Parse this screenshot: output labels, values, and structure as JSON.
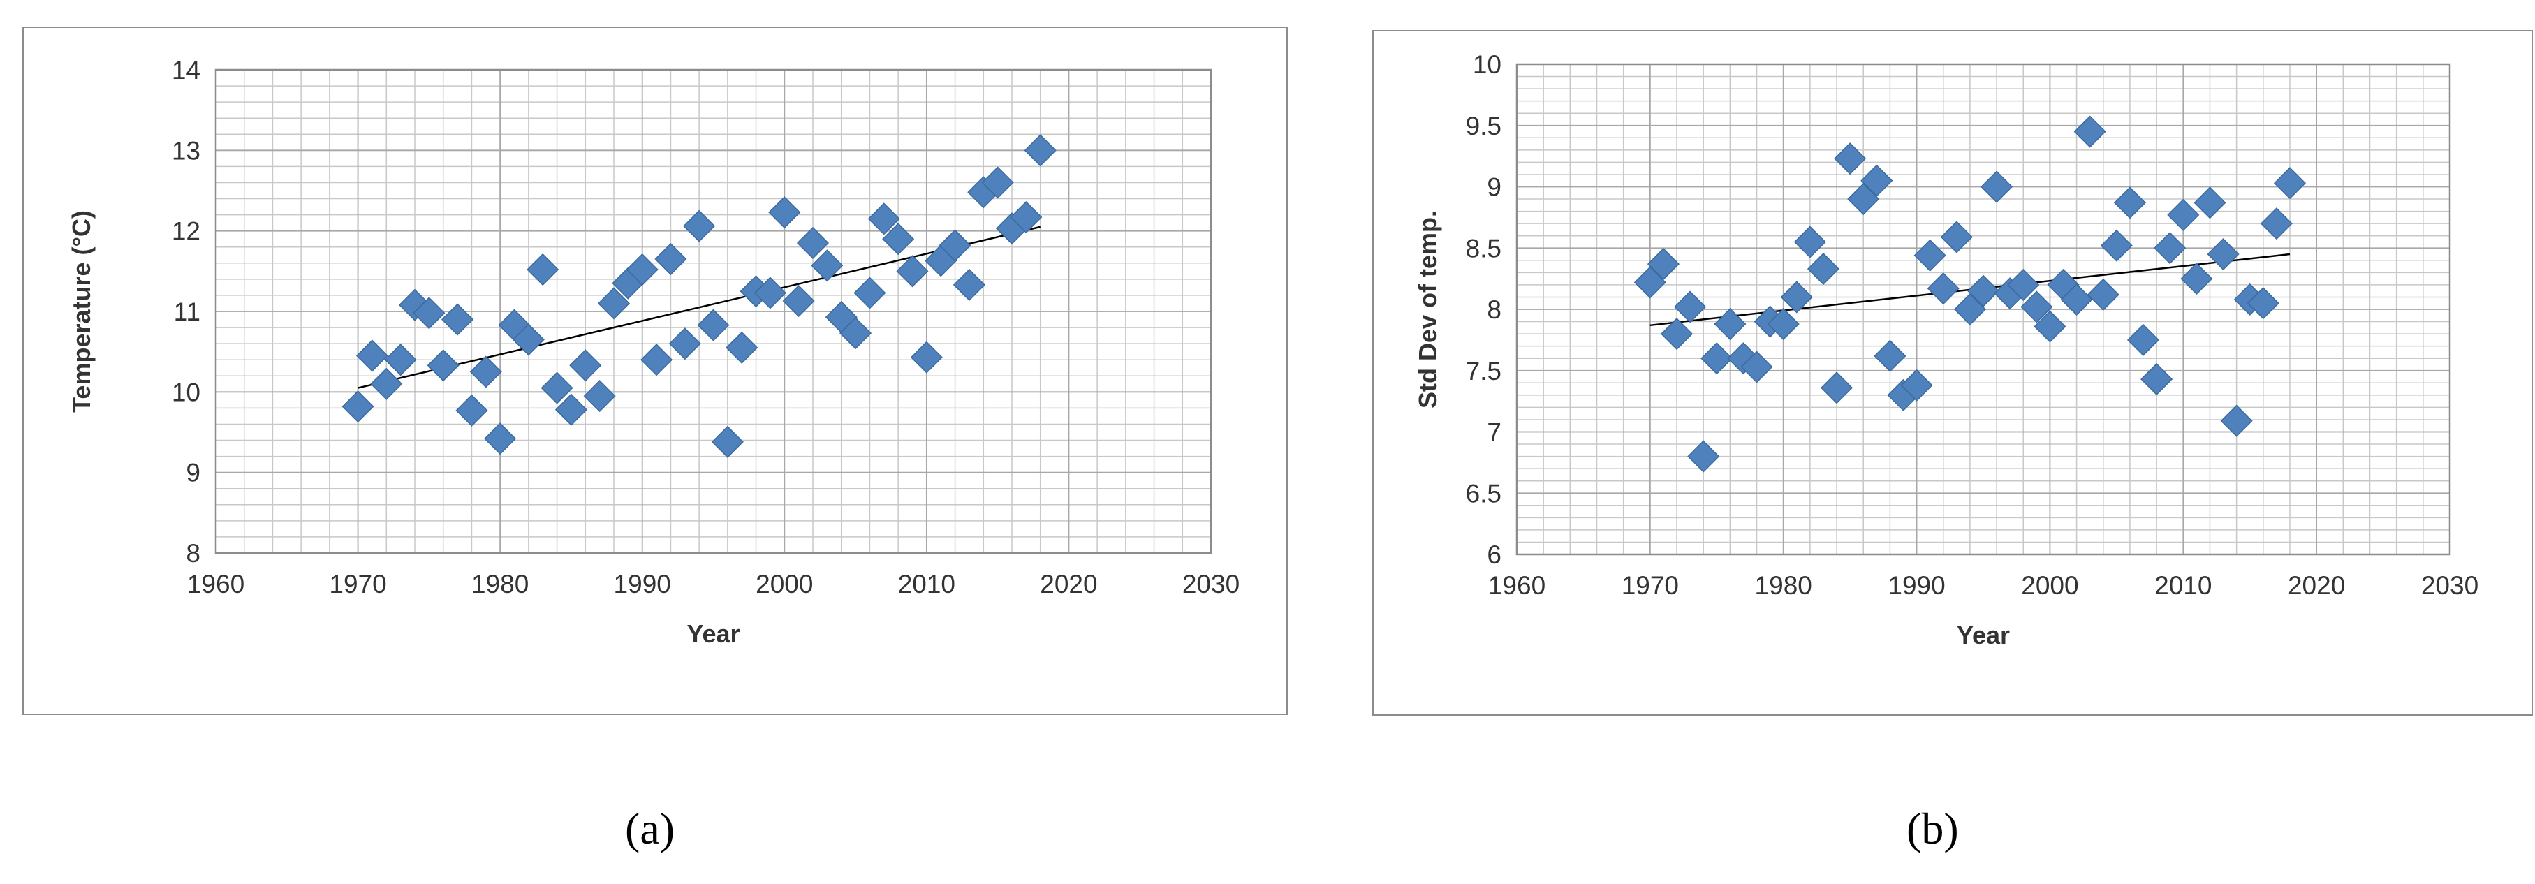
{
  "captions": {
    "a": "(a)",
    "b": "(b)"
  },
  "colors": {
    "marker": "#4f81bd",
    "marker_edge": "#3a6a9e",
    "trend": "#000000",
    "grid": "#c8c8c8"
  },
  "chart_data": [
    {
      "type": "scatter",
      "title": "",
      "xlabel": "Year",
      "ylabel": "Temperature (°C)",
      "xlim": [
        1960,
        2030
      ],
      "ylim": [
        8,
        14
      ],
      "xticks": [
        1960,
        1970,
        1980,
        1990,
        2000,
        2010,
        2020,
        2030
      ],
      "yticks": [
        8,
        9,
        10,
        11,
        12,
        13,
        14
      ],
      "grid": true,
      "legend": "none",
      "x": [
        1970,
        1971,
        1972,
        1973,
        1974,
        1975,
        1976,
        1977,
        1978,
        1979,
        1980,
        1981,
        1982,
        1983,
        1984,
        1985,
        1986,
        1987,
        1988,
        1989,
        1990,
        1991,
        1992,
        1993,
        1994,
        1995,
        1996,
        1997,
        1998,
        1999,
        2000,
        2001,
        2002,
        2003,
        2004,
        2005,
        2006,
        2007,
        2008,
        2009,
        2010,
        2011,
        2012,
        2013,
        2014,
        2015,
        2016,
        2017,
        2018
      ],
      "y": [
        9.82,
        10.45,
        10.1,
        10.4,
        11.08,
        10.98,
        10.33,
        10.9,
        9.77,
        10.25,
        9.42,
        10.83,
        10.65,
        11.52,
        10.05,
        9.78,
        10.33,
        9.95,
        11.1,
        11.35,
        11.52,
        10.4,
        11.65,
        10.6,
        12.06,
        10.83,
        9.38,
        10.55,
        11.25,
        11.23,
        12.23,
        11.13,
        11.85,
        11.57,
        10.93,
        10.73,
        11.23,
        12.15,
        11.9,
        11.5,
        10.43,
        11.63,
        11.82,
        11.33,
        12.48,
        12.6,
        12.03,
        12.17,
        13.0
      ],
      "trendline": {
        "x": [
          1970,
          2018
        ],
        "y": [
          10.05,
          12.05
        ]
      }
    },
    {
      "type": "scatter",
      "title": "",
      "xlabel": "Year",
      "ylabel": "Std Dev of temp.",
      "xlim": [
        1960,
        2030
      ],
      "ylim": [
        6,
        10
      ],
      "xticks": [
        1960,
        1970,
        1980,
        1990,
        2000,
        2010,
        2020,
        2030
      ],
      "yticks": [
        6,
        6.5,
        7,
        7.5,
        8,
        8.5,
        9,
        9.5,
        10
      ],
      "grid": true,
      "legend": "none",
      "x": [
        1970,
        1971,
        1972,
        1973,
        1974,
        1975,
        1976,
        1977,
        1978,
        1979,
        1980,
        1981,
        1982,
        1983,
        1984,
        1985,
        1986,
        1987,
        1988,
        1989,
        1990,
        1991,
        1992,
        1993,
        1994,
        1995,
        1996,
        1997,
        1998,
        1999,
        2000,
        2001,
        2002,
        2003,
        2004,
        2005,
        2006,
        2007,
        2008,
        2009,
        2010,
        2011,
        2012,
        2013,
        2014,
        2015,
        2016,
        2017,
        2018
      ],
      "y": [
        8.22,
        8.37,
        7.8,
        8.02,
        6.8,
        7.6,
        7.88,
        7.6,
        7.53,
        7.9,
        7.88,
        8.1,
        8.55,
        8.33,
        7.36,
        9.23,
        8.9,
        9.05,
        7.62,
        7.3,
        7.38,
        8.44,
        8.17,
        8.59,
        8.0,
        8.15,
        9.0,
        8.13,
        8.2,
        8.02,
        7.86,
        8.2,
        8.08,
        9.45,
        8.12,
        8.52,
        8.87,
        7.75,
        7.43,
        8.5,
        8.77,
        8.25,
        8.87,
        8.45,
        7.09,
        8.08,
        8.05,
        8.7,
        9.03
      ],
      "trendline": {
        "x": [
          1970,
          2018
        ],
        "y": [
          7.87,
          8.45
        ]
      }
    }
  ]
}
